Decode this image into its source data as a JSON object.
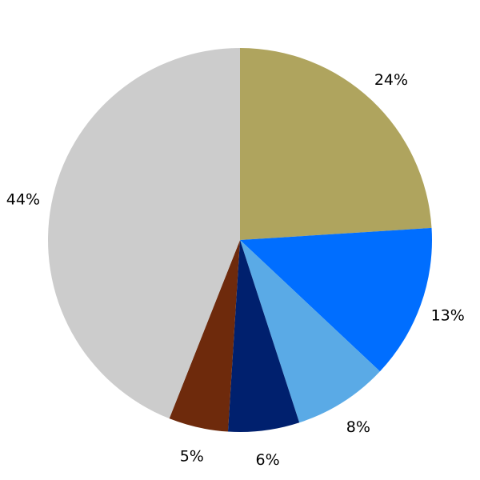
{
  "chart_data": {
    "type": "pie",
    "start": "top",
    "direction": "clockwise",
    "slices": [
      {
        "label": "24%",
        "value": 24,
        "color": "#AFA45E"
      },
      {
        "label": "13%",
        "value": 13,
        "color": "#006EFF"
      },
      {
        "label": "8%",
        "value": 8,
        "color": "#5AAAE6"
      },
      {
        "label": "6%",
        "value": 6,
        "color": "#00206E"
      },
      {
        "label": "5%",
        "value": 5,
        "color": "#6E2A0C"
      },
      {
        "label": "44%",
        "value": 44,
        "color": "#CCCCCC"
      }
    ]
  }
}
